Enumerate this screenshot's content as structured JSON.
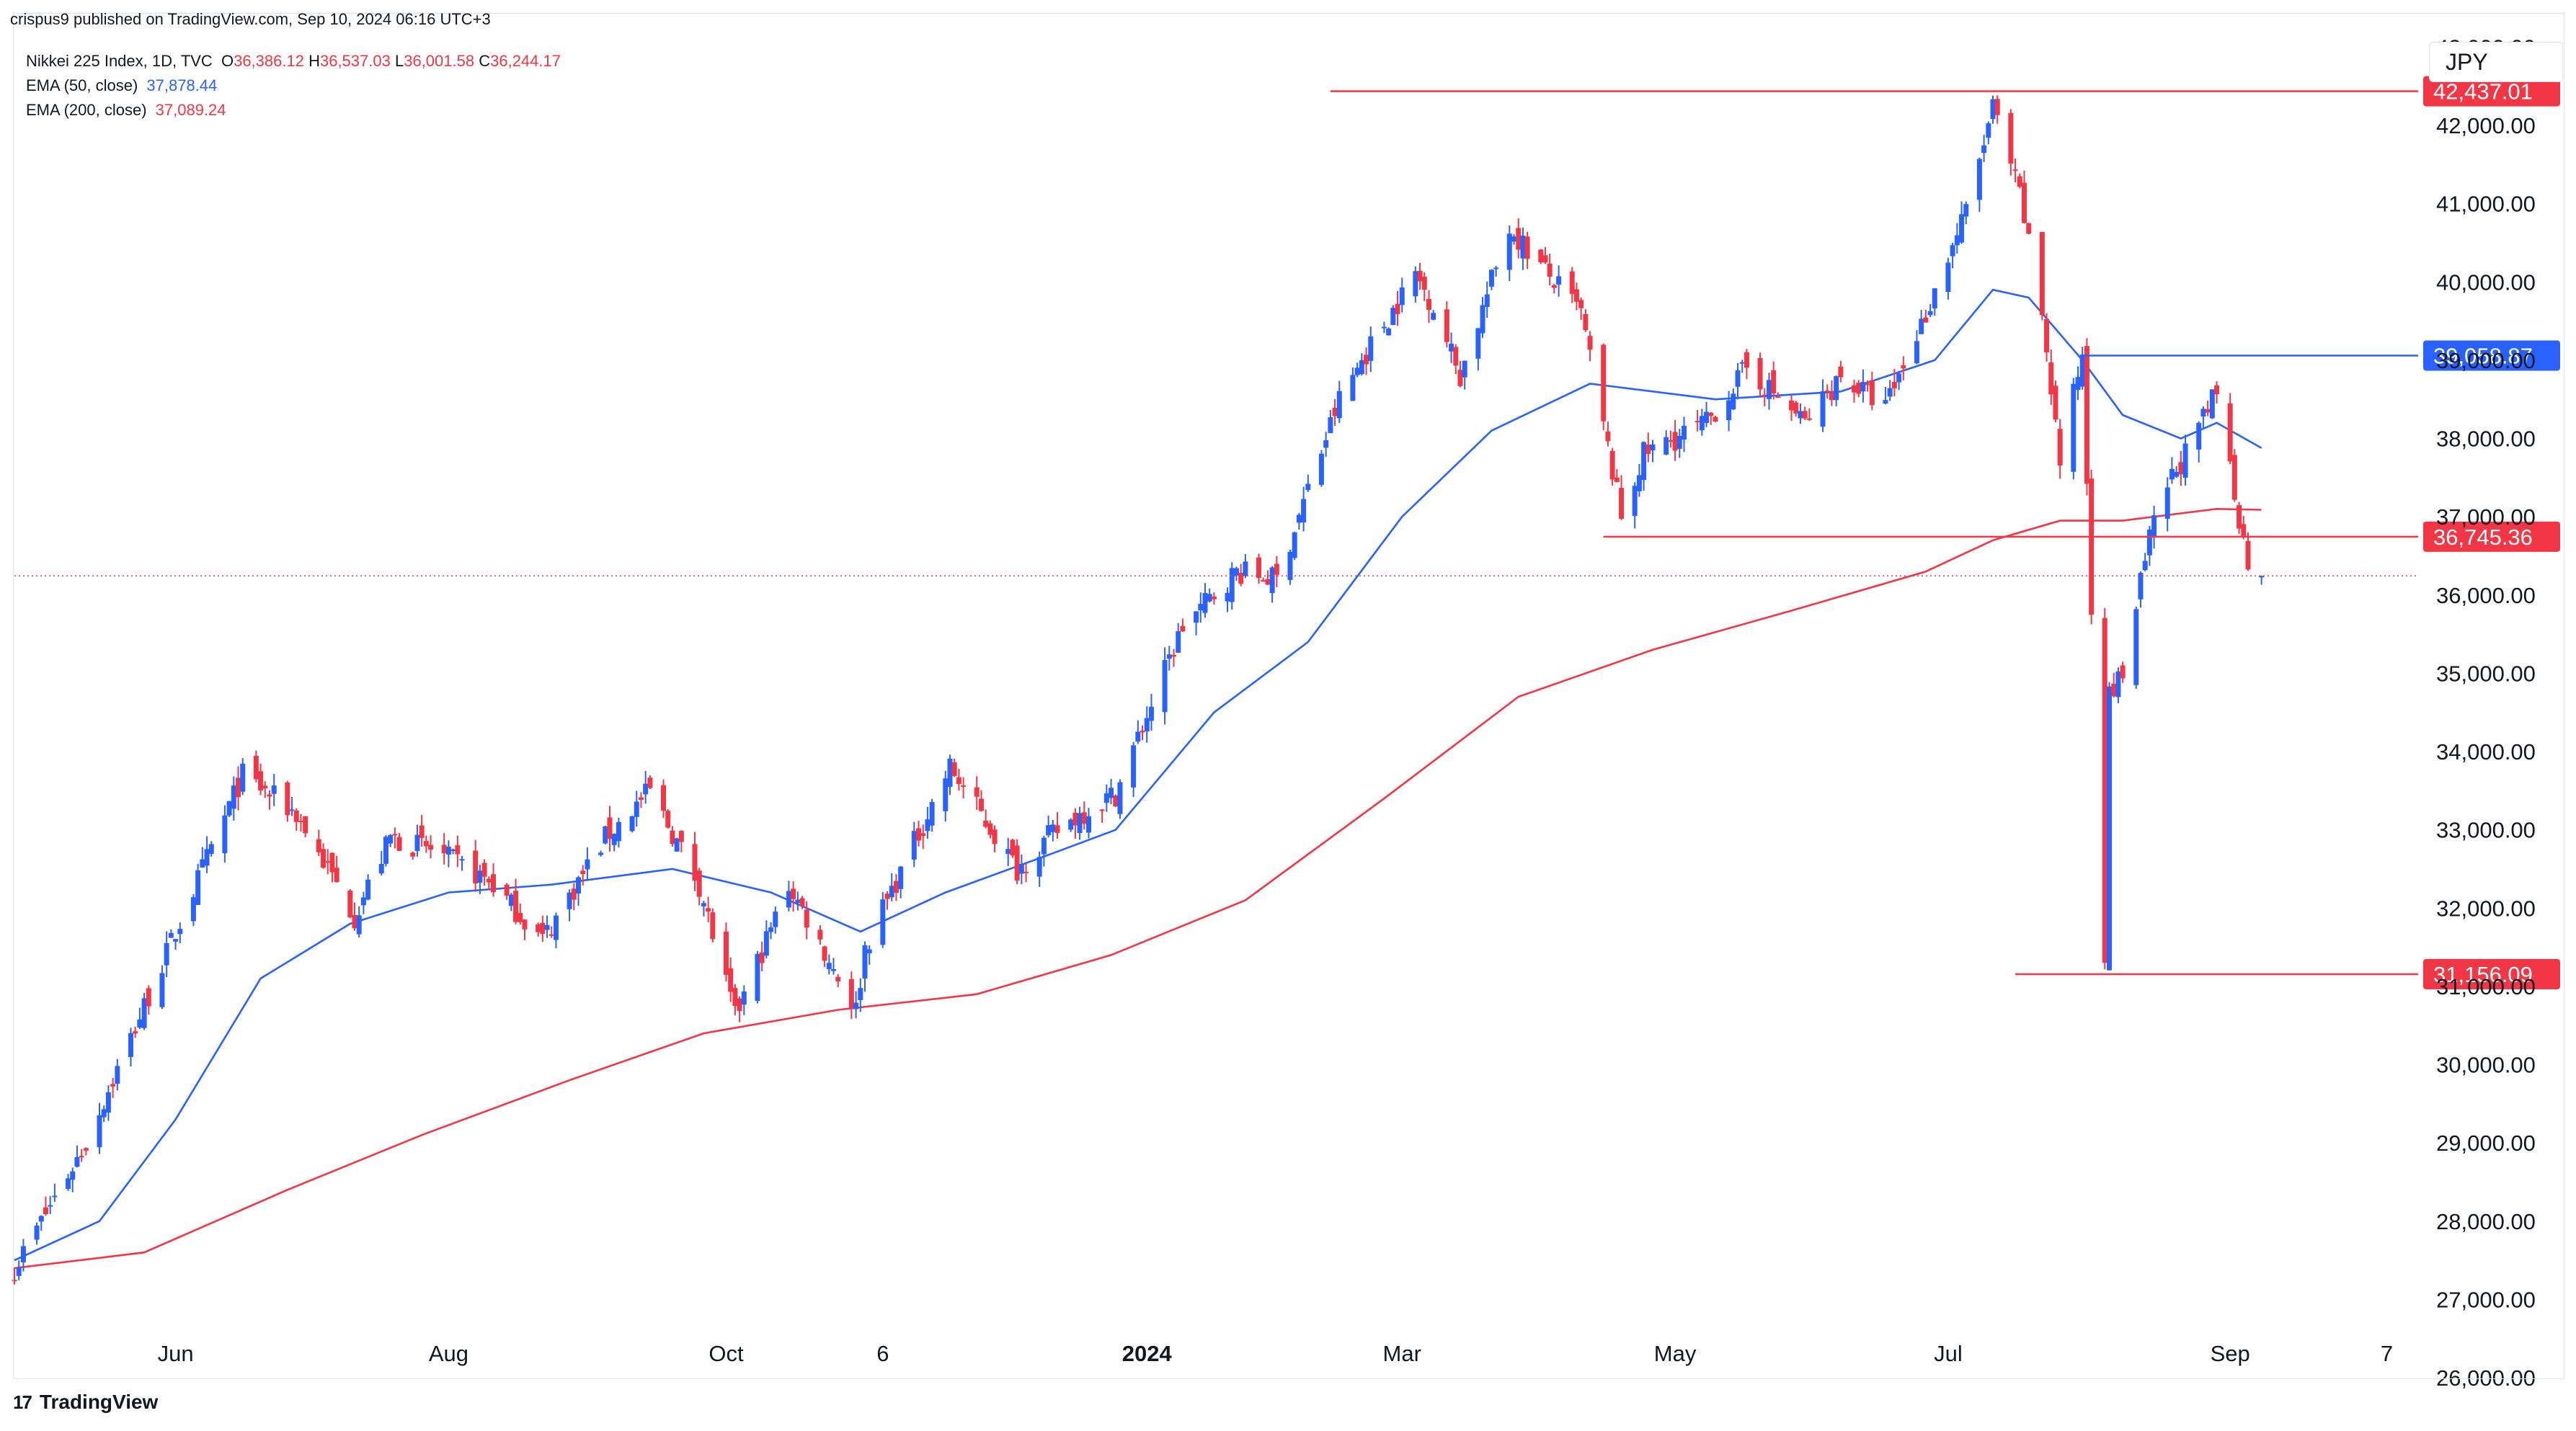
{
  "header": {
    "published_line": "crispus9 published on TradingView.com, Sep 10, 2024 06:16 UTC+3",
    "symbol": "Nikkei 225 Index, 1D, TVC",
    "ohlc": [
      {
        "label": "O",
        "value": "36,386.12"
      },
      {
        "label": "H",
        "value": "36,537.03"
      },
      {
        "label": "L",
        "value": "36,001.58"
      },
      {
        "label": "C",
        "value": "36,244.17"
      }
    ],
    "ema50_label": "EMA (50, close)",
    "ema50_value": "37,878.44",
    "ema200_label": "EMA (200, close)",
    "ema200_value": "37,089.24",
    "currency": "JPY"
  },
  "footer": {
    "brand": "TradingView",
    "logo_glyph": "17"
  },
  "colors": {
    "up": "#2962ff",
    "down": "#f23645",
    "ema50": "#2962ff",
    "ema200": "#f23645",
    "level_red": "#f23645",
    "level_blue": "#2962ff",
    "grid_text": "#131722"
  },
  "chart_data": {
    "type": "candlestick",
    "title": "Nikkei 225 Index, 1D, TVC",
    "y_axis_side": "right",
    "ylim": [
      26000,
      43400
    ],
    "y_ticks": [
      {
        "value": 26000,
        "label": "26,000.00"
      },
      {
        "value": 27000,
        "label": "27,000.00"
      },
      {
        "value": 28000,
        "label": "28,000.00"
      },
      {
        "value": 29000,
        "label": "29,000.00"
      },
      {
        "value": 30000,
        "label": "30,000.00"
      },
      {
        "value": 31000,
        "label": "31,000.00"
      },
      {
        "value": 32000,
        "label": "32,000.00"
      },
      {
        "value": 33000,
        "label": "33,000.00"
      },
      {
        "value": 34000,
        "label": "34,000.00"
      },
      {
        "value": 35000,
        "label": "35,000.00"
      },
      {
        "value": 36000,
        "label": "36,000.00"
      },
      {
        "value": 37000,
        "label": "37,000.00"
      },
      {
        "value": 38000,
        "label": "38,000.00"
      },
      {
        "value": 39000,
        "label": "39,000.00"
      },
      {
        "value": 40000,
        "label": "40,000.00"
      },
      {
        "value": 41000,
        "label": "41,000.00"
      },
      {
        "value": 42000,
        "label": "42,000.00"
      },
      {
        "value": 43000,
        "label": "43,000.00"
      }
    ],
    "x_ticks": [
      {
        "date": "2023-06-01",
        "label": "Jun",
        "bold": false
      },
      {
        "date": "2023-08-01",
        "label": "Aug",
        "bold": false
      },
      {
        "date": "2023-10-02",
        "label": "Oct",
        "bold": false
      },
      {
        "date": "2023-11-06",
        "label": "6",
        "bold": false
      },
      {
        "date": "2024-01-04",
        "label": "2024",
        "bold": true
      },
      {
        "date": "2024-03-01",
        "label": "Mar",
        "bold": false
      },
      {
        "date": "2024-05-01",
        "label": "May",
        "bold": false
      },
      {
        "date": "2024-07-01",
        "label": "Jul",
        "bold": false
      },
      {
        "date": "2024-09-02",
        "label": "Sep",
        "bold": false
      },
      {
        "date": "2024-10-07",
        "label": "7",
        "bold": false
      }
    ],
    "x_range": [
      "2023-04-26",
      "2024-10-14"
    ],
    "waypoints": [
      [
        "2023-04-26",
        27400
      ],
      [
        "2023-05-12",
        29000
      ],
      [
        "2023-06-16",
        33700
      ],
      [
        "2023-06-28",
        33200
      ],
      [
        "2023-07-11",
        31900
      ],
      [
        "2023-07-19",
        32900
      ],
      [
        "2023-07-28",
        32750
      ],
      [
        "2023-08-10",
        32350
      ],
      [
        "2023-08-22",
        31600
      ],
      [
        "2023-09-05",
        32900
      ],
      [
        "2023-09-15",
        33500
      ],
      [
        "2023-09-26",
        32300
      ],
      [
        "2023-10-04",
        30600
      ],
      [
        "2023-10-16",
        32300
      ],
      [
        "2023-10-31",
        30700
      ],
      [
        "2023-11-02",
        31500
      ],
      [
        "2023-11-21",
        33800
      ],
      [
        "2023-12-06",
        32500
      ],
      [
        "2023-12-13",
        32900
      ],
      [
        "2023-12-20",
        33200
      ],
      [
        "2023-12-28",
        33460
      ],
      [
        "2024-01-12",
        35600
      ],
      [
        "2024-01-24",
        36300
      ],
      [
        "2024-02-02",
        36200
      ],
      [
        "2024-02-16",
        38500
      ],
      [
        "2024-02-22",
        39100
      ],
      [
        "2024-03-04",
        40100
      ],
      [
        "2024-03-08",
        39700
      ],
      [
        "2024-03-14",
        38800
      ],
      [
        "2024-03-25",
        40700
      ],
      [
        "2024-04-01",
        40200
      ],
      [
        "2024-04-10",
        39600
      ],
      [
        "2024-04-19",
        37000
      ],
      [
        "2024-04-24",
        37800
      ],
      [
        "2024-05-08",
        38200
      ],
      [
        "2024-05-17",
        38900
      ],
      [
        "2024-05-30",
        38200
      ],
      [
        "2024-06-07",
        38800
      ],
      [
        "2024-06-17",
        38400
      ],
      [
        "2024-06-26",
        39600
      ],
      [
        "2024-07-05",
        40900
      ],
      [
        "2024-07-11",
        42220
      ],
      [
        "2024-07-17",
        41100
      ],
      [
        "2024-07-22",
        39600
      ],
      [
        "2024-07-26",
        37700
      ],
      [
        "2024-07-31",
        39100
      ],
      [
        "2024-08-02",
        35900
      ],
      [
        "2024-08-05",
        31460
      ],
      [
        "2024-08-06",
        34700
      ],
      [
        "2024-08-09",
        35000
      ],
      [
        "2024-08-15",
        36700
      ],
      [
        "2024-08-19",
        37400
      ],
      [
        "2024-08-26",
        38100
      ],
      [
        "2024-08-30",
        38600
      ],
      [
        "2024-09-04",
        37000
      ],
      [
        "2024-09-06",
        36400
      ],
      [
        "2024-09-09",
        36244
      ]
    ],
    "ema50": [
      [
        "2023-04-26",
        27500
      ],
      [
        "2023-05-15",
        28000
      ],
      [
        "2023-06-01",
        29300
      ],
      [
        "2023-06-20",
        31100
      ],
      [
        "2023-07-10",
        31800
      ],
      [
        "2023-08-01",
        32200
      ],
      [
        "2023-08-24",
        32300
      ],
      [
        "2023-09-20",
        32500
      ],
      [
        "2023-10-12",
        32200
      ],
      [
        "2023-11-01",
        31700
      ],
      [
        "2023-11-20",
        32200
      ],
      [
        "2023-12-14",
        32700
      ],
      [
        "2023-12-28",
        33000
      ],
      [
        "2024-01-19",
        34500
      ],
      [
        "2024-02-09",
        35400
      ],
      [
        "2024-03-01",
        37000
      ],
      [
        "2024-03-21",
        38100
      ],
      [
        "2024-04-12",
        38700
      ],
      [
        "2024-05-10",
        38500
      ],
      [
        "2024-06-07",
        38600
      ],
      [
        "2024-06-28",
        39000
      ],
      [
        "2024-07-11",
        39900
      ],
      [
        "2024-07-19",
        39800
      ],
      [
        "2024-07-31",
        39000
      ],
      [
        "2024-08-09",
        38300
      ],
      [
        "2024-08-22",
        38000
      ],
      [
        "2024-08-30",
        38200
      ],
      [
        "2024-09-09",
        37878
      ]
    ],
    "ema200": [
      [
        "2023-04-26",
        27400
      ],
      [
        "2023-05-25",
        27600
      ],
      [
        "2023-06-26",
        28400
      ],
      [
        "2023-07-26",
        29100
      ],
      [
        "2023-08-28",
        29800
      ],
      [
        "2023-09-27",
        30400
      ],
      [
        "2023-10-27",
        30700
      ],
      [
        "2023-11-27",
        30900
      ],
      [
        "2023-12-27",
        31400
      ],
      [
        "2024-01-26",
        32100
      ],
      [
        "2024-02-26",
        33400
      ],
      [
        "2024-03-27",
        34700
      ],
      [
        "2024-04-26",
        35300
      ],
      [
        "2024-05-27",
        35800
      ],
      [
        "2024-06-26",
        36300
      ],
      [
        "2024-07-11",
        36700
      ],
      [
        "2024-07-26",
        36950
      ],
      [
        "2024-08-09",
        36950
      ],
      [
        "2024-08-30",
        37100
      ],
      [
        "2024-09-09",
        37089
      ]
    ],
    "current_price": 36244.17,
    "levels": [
      {
        "value": 42437.01,
        "label": "42,437.01",
        "color": "red",
        "from": "2024-02-14",
        "to": "2024-10-14"
      },
      {
        "value": 39058.87,
        "label": "39,058.87",
        "color": "blue",
        "from": "2024-07-31",
        "to": "2024-10-14"
      },
      {
        "value": 36745.36,
        "label": "36,745.36",
        "color": "red",
        "from": "2024-04-15",
        "to": "2024-10-14"
      },
      {
        "value": 31156.09,
        "label": "31,156.09",
        "color": "red",
        "from": "2024-07-16",
        "to": "2024-10-14"
      }
    ]
  }
}
